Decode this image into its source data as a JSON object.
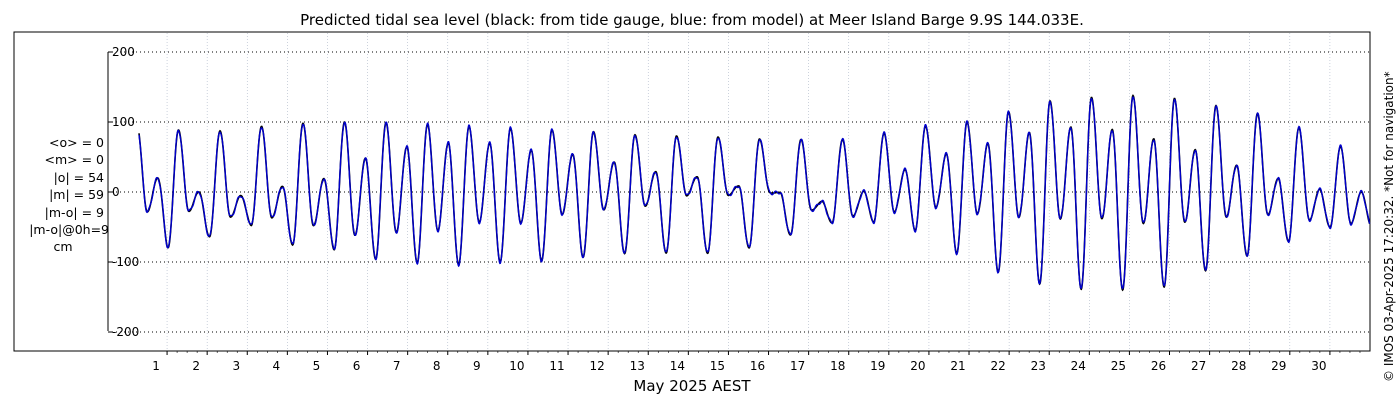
{
  "chart_data": {
    "type": "line",
    "title": "Predicted tidal sea level (black: from tide gauge, blue: from model) at Meer Island Barge 9.9S 144.033E.",
    "xlabel": "May 2025 AEST",
    "x_ticks": [
      "1",
      "2",
      "3",
      "4",
      "5",
      "6",
      "7",
      "8",
      "9",
      "10",
      "11",
      "12",
      "13",
      "14",
      "15",
      "16",
      "17",
      "18",
      "19",
      "20",
      "21",
      "22",
      "23",
      "24",
      "25",
      "26",
      "27",
      "28",
      "29",
      "30"
    ],
    "y_ticks": [
      "200",
      "100",
      "0",
      "-100",
      "-200"
    ],
    "ylim": [
      -225,
      225
    ],
    "xlim": [
      0.3,
      31.0
    ],
    "grid": true,
    "series": [
      {
        "color": "#000000"
      },
      {
        "color": "#0000cc"
      }
    ],
    "daily_envelope": {
      "days": [
        0.3,
        1,
        2,
        3,
        4,
        5,
        6,
        7,
        8,
        9,
        10,
        11,
        12,
        13,
        14,
        15,
        16,
        17,
        18,
        19,
        20,
        21,
        22,
        23,
        24,
        25,
        26,
        27,
        28,
        29,
        30,
        31
      ],
      "major_high": [
        95,
        90,
        85,
        92,
        97,
        100,
        100,
        98,
        95,
        92,
        90,
        88,
        85,
        80,
        80,
        78,
        75,
        75,
        75,
        85,
        95,
        100,
        115,
        130,
        135,
        138,
        135,
        125,
        115,
        100,
        65,
        65
      ],
      "major_low": [
        -35,
        -80,
        -65,
        -45,
        -75,
        -80,
        -95,
        -100,
        -105,
        -100,
        -100,
        -95,
        -90,
        -85,
        -90,
        -85,
        -75,
        -50,
        -40,
        -45,
        -60,
        -100,
        -120,
        -135,
        -140,
        -140,
        -135,
        -110,
        -90,
        -70,
        -50,
        -50
      ],
      "minor_high": [
        20,
        20,
        -5,
        -5,
        10,
        20,
        50,
        65,
        70,
        70,
        60,
        55,
        45,
        30,
        25,
        10,
        5,
        -15,
        -10,
        20,
        50,
        60,
        80,
        90,
        95,
        85,
        70,
        55,
        30,
        15,
        0,
        0
      ],
      "minor_low": [
        -30,
        -25,
        -30,
        -40,
        -35,
        -55,
        -65,
        -55,
        -55,
        -40,
        -45,
        -30,
        -25,
        -20,
        -5,
        -5,
        0,
        -25,
        -35,
        -30,
        -20,
        -30,
        -35,
        -40,
        -35,
        -45,
        -45,
        -40,
        -30,
        -35,
        -45,
        -45
      ]
    }
  },
  "stats": {
    "o_mean": "<o> = 0",
    "m_mean": "<m> = 0",
    "o_abs": "|o| = 54",
    "m_abs": "|m| = 59",
    "mo_abs": "|m-o| = 9",
    "mo_0h": "|m-o|@0h=9",
    "unit": "cm"
  },
  "credit": "© IMOS 03-Apr-2025 17:20:32. *Not for navigation*"
}
